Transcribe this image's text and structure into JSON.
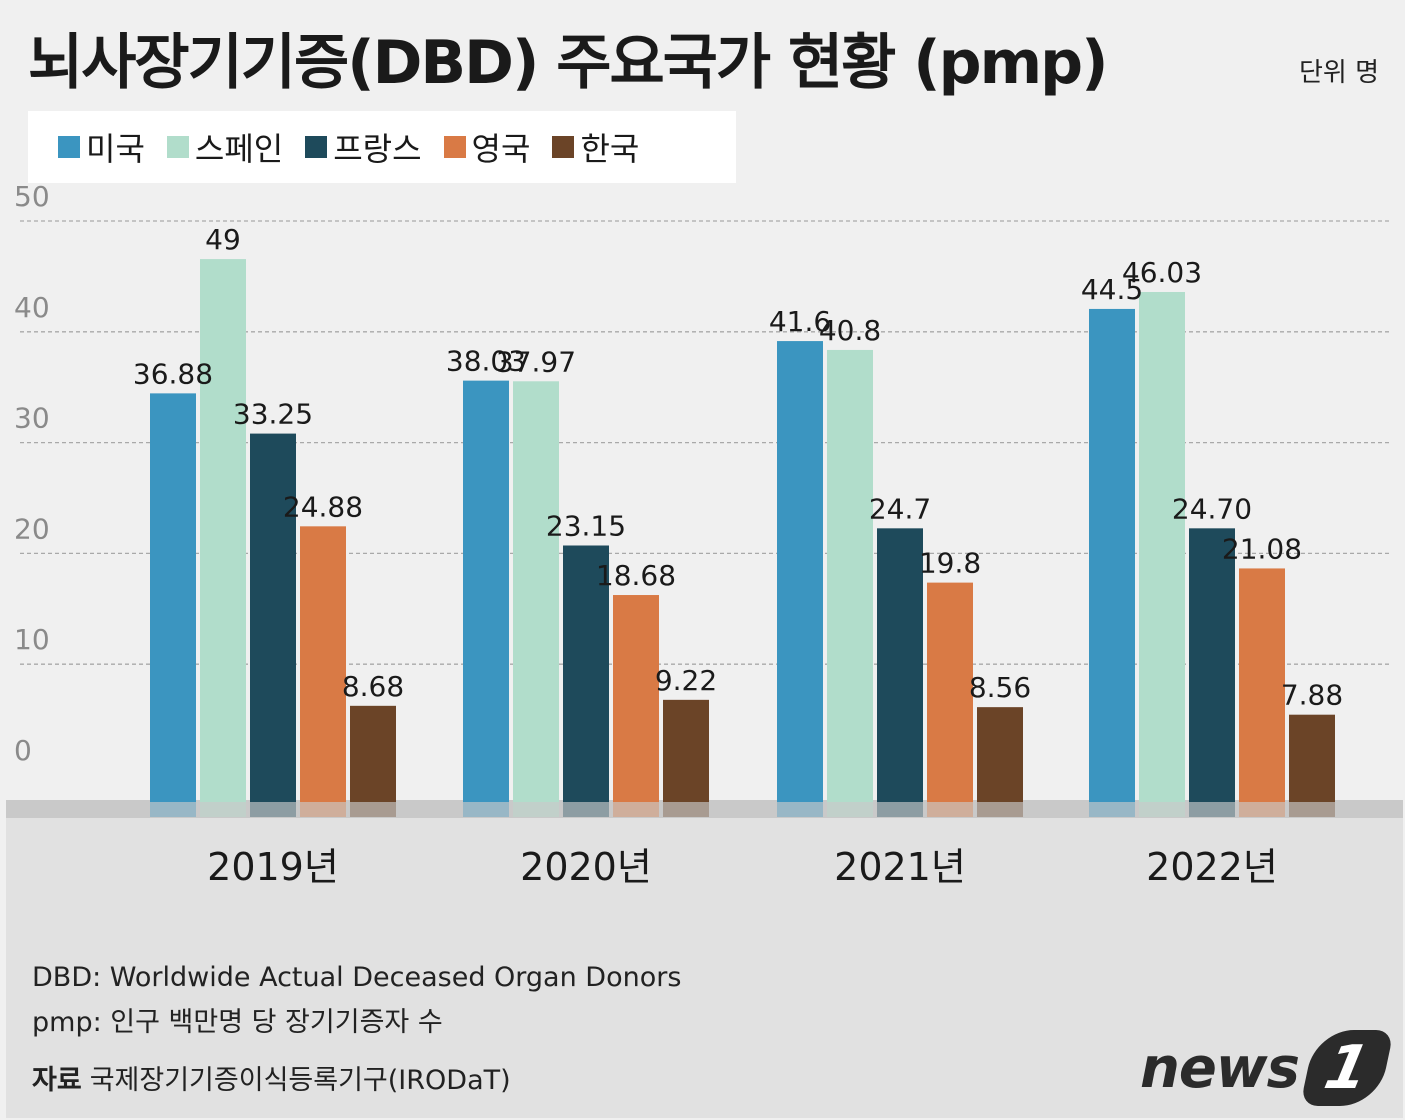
{
  "title": "뇌사장기기증(DBD) 주요국가 현황 (pmp)",
  "unit": "단위 명",
  "legend": [
    {
      "label": "미국",
      "color": "#3b95c0"
    },
    {
      "label": "스페인",
      "color": "#b1ddcb"
    },
    {
      "label": "프랑스",
      "color": "#1e4a5b"
    },
    {
      "label": "영국",
      "color": "#d97a45"
    },
    {
      "label": "한국",
      "color": "#6b4427"
    }
  ],
  "chart_data": {
    "type": "bar",
    "categories": [
      "2019년",
      "2020년",
      "2021년",
      "2022년"
    ],
    "series": [
      {
        "name": "미국",
        "color": "#3b95c0",
        "values": [
          36.88,
          38.03,
          41.6,
          44.5
        ],
        "labels": [
          "36.88",
          "38.03",
          "41.6",
          "44.5"
        ]
      },
      {
        "name": "스페인",
        "color": "#b1ddcb",
        "values": [
          49,
          37.97,
          40.8,
          46.03
        ],
        "labels": [
          "49",
          "37.97",
          "40.8",
          "46.03"
        ]
      },
      {
        "name": "프랑스",
        "color": "#1e4a5b",
        "values": [
          33.25,
          23.15,
          24.7,
          24.7
        ],
        "labels": [
          "33.25",
          "23.15",
          "24.7",
          "24.70"
        ]
      },
      {
        "name": "영국",
        "color": "#d97a45",
        "values": [
          24.88,
          18.68,
          19.8,
          21.08
        ],
        "labels": [
          "24.88",
          "18.68",
          "19.8",
          "21.08"
        ]
      },
      {
        "name": "한국",
        "color": "#6b4427",
        "values": [
          8.68,
          9.22,
          8.56,
          7.88
        ],
        "labels": [
          "8.68",
          "9.22",
          "8.56",
          "7.88"
        ]
      }
    ],
    "yticks": [
      "0",
      "10",
      "20",
      "30",
      "40",
      "50"
    ],
    "ylim": [
      0,
      50
    ],
    "grid": true
  },
  "notes": [
    "DBD: Worldwide Actual Deceased Organ Donors",
    "pmp: 인구 백만명 당 장기기증자 수"
  ],
  "source": {
    "head": "자료",
    "text": "국제장기기증이식등록기구(IRODaT)"
  },
  "logo": {
    "text": "news",
    "mark": "1"
  }
}
